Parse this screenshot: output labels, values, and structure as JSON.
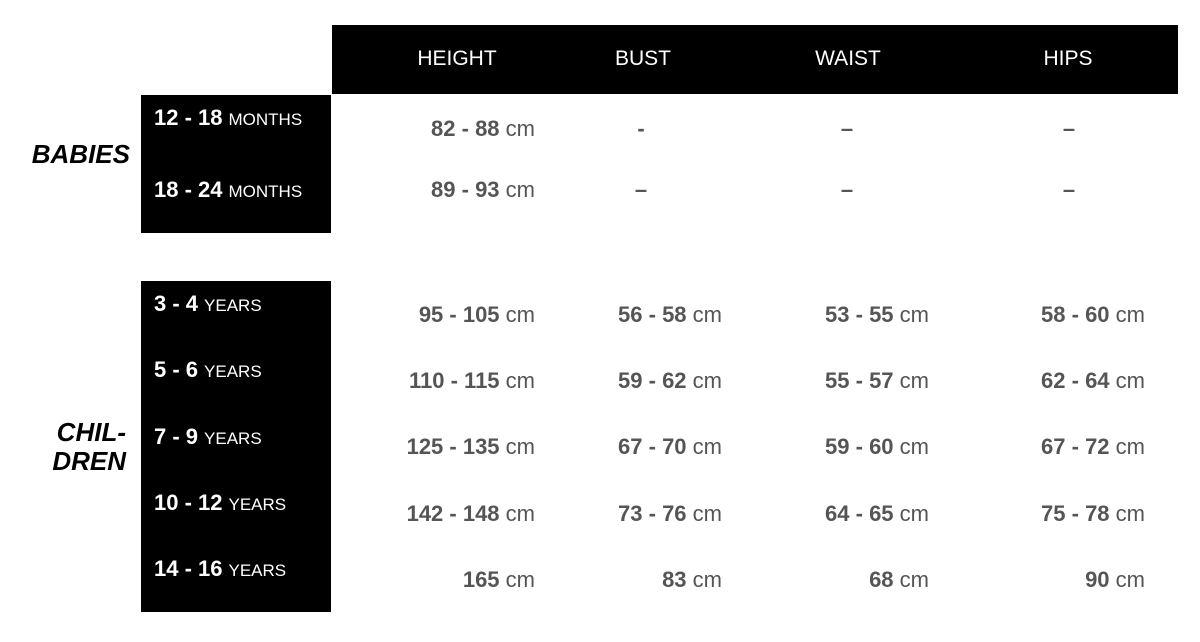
{
  "headers": [
    "HEIGHT",
    "BUST",
    "WAIST",
    "HIPS"
  ],
  "groups": {
    "babies": {
      "label": "BABIES",
      "rows": [
        {
          "range": "12 - 18",
          "unit": "MONTHS",
          "values": [
            {
              "num": "82 - 88",
              "unit": "cm"
            },
            {
              "num": "-",
              "unit": ""
            },
            {
              "num": "–",
              "unit": ""
            },
            {
              "num": "–",
              "unit": ""
            }
          ]
        },
        {
          "range": "18 - 24",
          "unit": "MONTHS",
          "values": [
            {
              "num": "89 - 93",
              "unit": "cm"
            },
            {
              "num": "–",
              "unit": ""
            },
            {
              "num": "–",
              "unit": ""
            },
            {
              "num": "–",
              "unit": ""
            }
          ]
        }
      ]
    },
    "children": {
      "label_line1": "CHIL-",
      "label_line2": "DREN",
      "rows": [
        {
          "range": "3 - 4",
          "unit": "YEARS",
          "values": [
            {
              "num": "95 - 105",
              "unit": "cm"
            },
            {
              "num": "56 - 58",
              "unit": "cm"
            },
            {
              "num": "53 - 55",
              "unit": "cm"
            },
            {
              "num": "58 - 60",
              "unit": "cm"
            }
          ]
        },
        {
          "range": "5 - 6",
          "unit": "YEARS",
          "values": [
            {
              "num": "110 - 115",
              "unit": "cm"
            },
            {
              "num": "59 - 62",
              "unit": "cm"
            },
            {
              "num": "55 - 57",
              "unit": "cm"
            },
            {
              "num": "62 - 64",
              "unit": "cm"
            }
          ]
        },
        {
          "range": "7 - 9",
          "unit": "YEARS",
          "values": [
            {
              "num": "125 - 135",
              "unit": "cm"
            },
            {
              "num": "67 - 70",
              "unit": "cm"
            },
            {
              "num": "59 - 60",
              "unit": "cm"
            },
            {
              "num": "67 - 72",
              "unit": "cm"
            }
          ]
        },
        {
          "range": "10 - 12",
          "unit": "YEARS",
          "values": [
            {
              "num": "142 - 148",
              "unit": "cm"
            },
            {
              "num": "73 - 76",
              "unit": "cm"
            },
            {
              "num": "64 - 65",
              "unit": "cm"
            },
            {
              "num": "75 - 78",
              "unit": "cm"
            }
          ]
        },
        {
          "range": "14 - 16",
          "unit": "YEARS",
          "values": [
            {
              "num": "165",
              "unit": "cm"
            },
            {
              "num": "83",
              "unit": "cm"
            },
            {
              "num": "68",
              "unit": "cm"
            },
            {
              "num": "90",
              "unit": "cm"
            }
          ]
        }
      ]
    }
  }
}
